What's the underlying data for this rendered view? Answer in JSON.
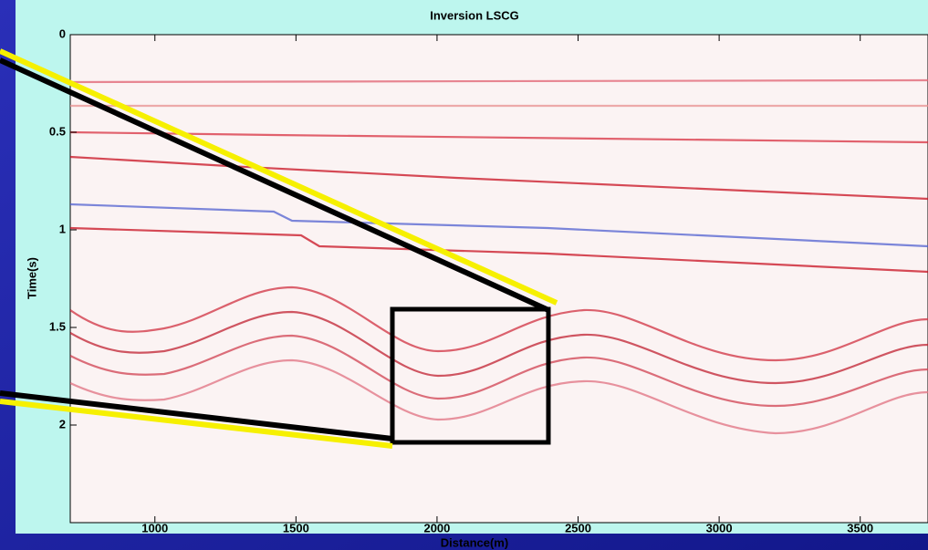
{
  "chart_data": {
    "type": "seismic-image",
    "title": "Inversion LSCG",
    "xlabel": "Distance(m)",
    "ylabel": "Time(s)",
    "xlim": [
      700,
      3750
    ],
    "ylim": [
      0,
      2.5
    ],
    "xticks": [
      1000,
      1500,
      2000,
      2500,
      3000,
      3500
    ],
    "yticks": [
      0,
      0.5,
      1,
      1.5,
      2
    ],
    "y_inverted": true
  }
}
